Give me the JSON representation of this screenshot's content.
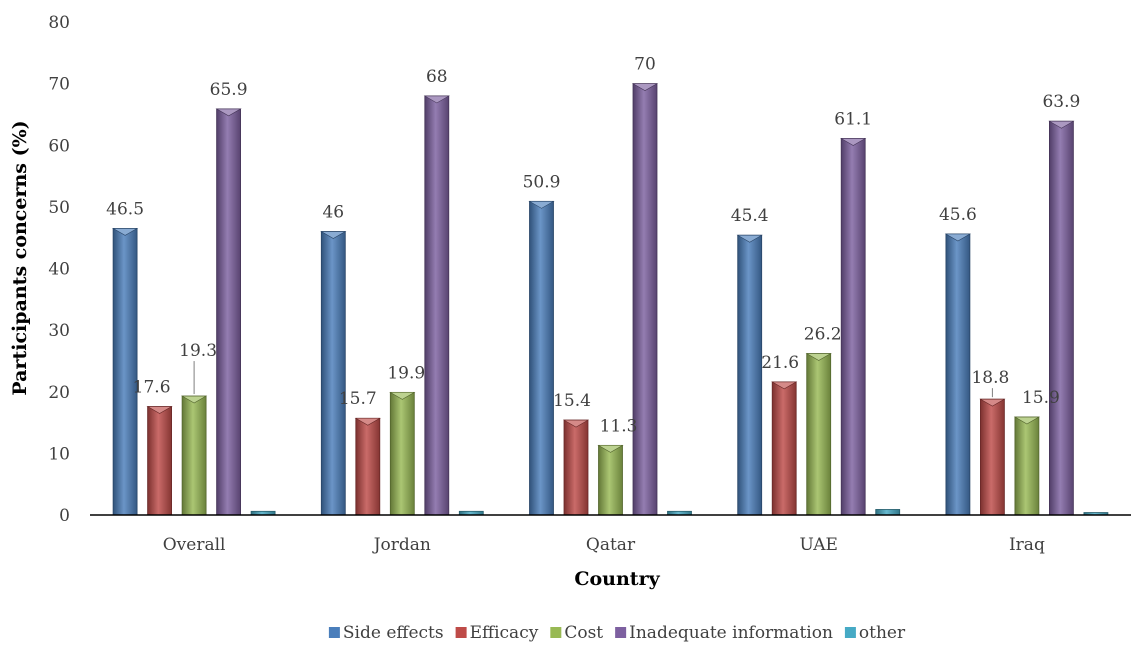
{
  "chart_data": {
    "type": "bar",
    "title": "",
    "xlabel": "Country",
    "ylabel": "Participants concerns (%)",
    "ylim": [
      0,
      80
    ],
    "yticks": [
      0,
      10,
      20,
      30,
      40,
      50,
      60,
      70,
      80
    ],
    "categories": [
      "Overall",
      "Jordan",
      "Qatar",
      "UAE",
      "Iraq"
    ],
    "series": [
      {
        "name": "Side effects",
        "color": "#4a7ebb",
        "values": [
          46.5,
          46,
          50.9,
          45.4,
          45.6
        ],
        "labels": [
          "46.5",
          "46",
          "50.9",
          "45.4",
          "45.6"
        ]
      },
      {
        "name": "Efficacy",
        "color": "#be4b48",
        "values": [
          17.6,
          15.7,
          15.4,
          21.6,
          18.8
        ],
        "labels": [
          "17.6",
          "15.7",
          "15.4",
          "21.6",
          "18.8"
        ]
      },
      {
        "name": "Cost",
        "color": "#98b954",
        "values": [
          19.3,
          19.9,
          11.3,
          26.2,
          15.9
        ],
        "labels": [
          "19.3",
          "19.9",
          "11.3",
          "26.2",
          "15.9"
        ]
      },
      {
        "name": "Inadequate information",
        "color": "#7d60a0",
        "values": [
          65.9,
          68,
          70,
          61.1,
          63.9
        ],
        "labels": [
          "65.9",
          "68",
          "70",
          "61.1",
          "63.9"
        ]
      },
      {
        "name": "other",
        "color": "#46aac5",
        "values": [
          0.6,
          0.6,
          0.6,
          0.9,
          0.4
        ],
        "labels": [
          "",
          "",
          "",
          "",
          ""
        ]
      }
    ],
    "grid": false,
    "legend_position": "bottom"
  }
}
